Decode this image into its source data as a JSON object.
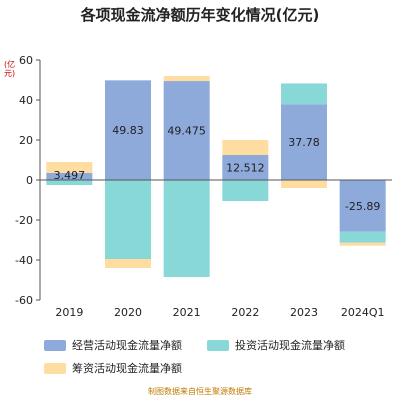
{
  "chart_data": {
    "type": "bar",
    "stacked": true,
    "title": "各项现金流净额历年变化情况(亿元)",
    "unit": "(亿元)",
    "categories": [
      "2019",
      "2020",
      "2021",
      "2022",
      "2023",
      "2024Q1"
    ],
    "series": [
      {
        "name": "经营活动现金流量净额",
        "color": "#8eaadb",
        "values": [
          3.497,
          49.83,
          49.475,
          12.512,
          37.78,
          -25.89
        ],
        "labels": [
          "3.497",
          "49.83",
          "49.475",
          "12.512",
          "37.78",
          "-25.89"
        ]
      },
      {
        "name": "投资活动现金流量净额",
        "color": "#88d8d8",
        "values": [
          -2.5,
          -39.5,
          -48.5,
          -10.5,
          10.5,
          -5.5
        ]
      },
      {
        "name": "筹资活动现金流量净额",
        "color": "#ffdca0",
        "values": [
          5.5,
          -4.5,
          2.5,
          7.5,
          -4,
          -1.5
        ]
      }
    ],
    "ylim": [
      -60,
      60
    ],
    "yticks": [
      -60,
      -40,
      -20,
      0,
      20,
      40,
      60
    ],
    "grid": false,
    "legend_position": "bottom"
  },
  "source": "制图数据来自恒生聚源数据库"
}
